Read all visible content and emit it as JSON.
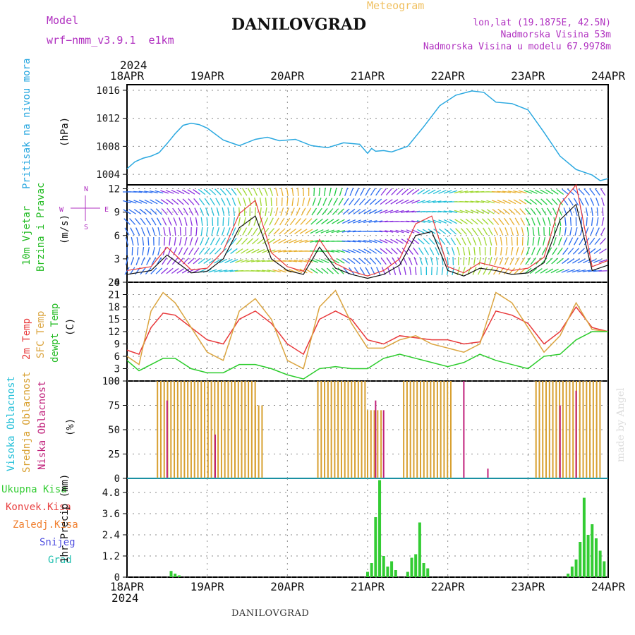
{
  "header": {
    "model_label": "Model",
    "model_name": "wrf−nmm_v3.9.1  e1km",
    "title": "DANILOVGRAD",
    "subtitle": "Meteogram",
    "lonlat": "lon,lat (19.1875E, 42.5N)",
    "altitude": "Nadmorska Visina 53m",
    "model_altitude": "Nadmorska Visina u modelu 67.9978m",
    "top_year": "2024",
    "bottom_year": "2024",
    "footer": "DANILOVGRAD",
    "credit": "made by Angel"
  },
  "colors": {
    "pressure": "#2aa8e0",
    "temp2m": "#e8383a",
    "sfc_temp": "#dba540",
    "dewpoint": "#2ccc2c",
    "cloud_high": "#22bfd8",
    "cloud_mid": "#d8a030",
    "cloud_low": "#c0207a",
    "precip_total": "#33cc33",
    "precip_conv": "#e84040",
    "precip_frz": "#f08030",
    "snow": "#5050e0",
    "hail": "#20c0b0",
    "wind_label": "#22bb22",
    "cloud_label": "#b030c0",
    "axis_label_pressure": "#2aa8e0"
  },
  "chart_data": [
    {
      "type": "line",
      "panel": "pressure",
      "ylabel_main": "Pritisak na nivou mora",
      "unit": "(hPa)",
      "x_dates": [
        "18APR",
        "19APR",
        "20APR",
        "21APR",
        "22APR",
        "23APR",
        "24APR"
      ],
      "ylim": [
        1002.5,
        1016.8
      ],
      "yticks": [
        "1004",
        "1008",
        "1012",
        "1016"
      ],
      "x": [
        0,
        0.1,
        0.2,
        0.3,
        0.4,
        0.5,
        0.6,
        0.7,
        0.8,
        0.9,
        1.0,
        1.2,
        1.4,
        1.6,
        1.75,
        1.9,
        2.1,
        2.3,
        2.5,
        2.7,
        2.9,
        3.0,
        3.05,
        3.1,
        3.2,
        3.3,
        3.5,
        3.7,
        3.9,
        4.1,
        4.3,
        4.45,
        4.6,
        4.8,
        5.0,
        5.2,
        5.4,
        5.6,
        5.8,
        5.9,
        6.0
      ],
      "values": [
        1004.8,
        1005.8,
        1006.3,
        1006.6,
        1007.1,
        1008.4,
        1009.8,
        1011.0,
        1011.3,
        1011.1,
        1010.6,
        1008.9,
        1008.1,
        1009.0,
        1009.3,
        1008.8,
        1009.0,
        1008.1,
        1007.8,
        1008.5,
        1008.3,
        1007.0,
        1007.7,
        1007.3,
        1007.4,
        1007.2,
        1008.0,
        1010.8,
        1013.8,
        1015.3,
        1015.9,
        1015.7,
        1014.3,
        1014.1,
        1013.2,
        1010.0,
        1006.6,
        1004.7,
        1003.9,
        1003.1,
        1003.4
      ]
    },
    {
      "type": "line",
      "panel": "wind",
      "ylabel_main": "10m Vjetar",
      "ylabel_sub": "Brzina i Pravac",
      "unit": "(m/s)",
      "compass": {
        "north": "N",
        "south": "S",
        "east": "E",
        "west": "W"
      },
      "ylim": [
        0,
        12.5
      ],
      "yticks": [
        "0",
        "3",
        "6",
        "9",
        "12"
      ],
      "series": [
        {
          "name": "speed",
          "x": [
            0,
            0.3,
            0.5,
            0.8,
            1.0,
            1.2,
            1.4,
            1.6,
            1.8,
            2.0,
            2.2,
            2.4,
            2.6,
            2.8,
            3.0,
            3.2,
            3.4,
            3.6,
            3.8,
            4.0,
            4.2,
            4.4,
            4.6,
            4.8,
            5.0,
            5.2,
            5.4,
            5.6,
            5.8,
            6.0
          ],
          "values": [
            1.0,
            1.5,
            3.5,
            1.2,
            1.4,
            3.0,
            7.0,
            8.5,
            3.0,
            1.5,
            1.0,
            4.5,
            1.8,
            1.0,
            0.5,
            1.0,
            2.2,
            6.0,
            6.5,
            1.5,
            0.8,
            1.8,
            1.5,
            1.0,
            1.2,
            2.5,
            8.0,
            10.0,
            1.5,
            2.2
          ]
        },
        {
          "name": "gust",
          "x": [
            0,
            0.3,
            0.5,
            0.8,
            1.0,
            1.2,
            1.4,
            1.6,
            1.8,
            2.0,
            2.2,
            2.4,
            2.6,
            2.8,
            3.0,
            3.2,
            3.4,
            3.6,
            3.8,
            4.0,
            4.2,
            4.4,
            4.6,
            4.8,
            5.0,
            5.2,
            5.4,
            5.6,
            5.8,
            6.0
          ],
          "values": [
            1.5,
            2.0,
            4.5,
            1.6,
            1.8,
            4.0,
            8.8,
            10.5,
            3.8,
            2.0,
            1.4,
            5.5,
            2.4,
            1.4,
            0.8,
            1.5,
            3.0,
            7.5,
            8.5,
            2.0,
            1.2,
            2.5,
            2.0,
            1.5,
            1.8,
            3.2,
            10.0,
            12.5,
            2.0,
            2.8
          ]
        }
      ]
    },
    {
      "type": "line",
      "panel": "temperature",
      "ylabel_main": "2m Temp",
      "ylabel_sub1": "SFC Temp",
      "ylabel_sub2": "dewpt Temp",
      "unit": "(C)",
      "ylim": [
        0,
        24
      ],
      "yticks": [
        "0",
        "3",
        "6",
        "9",
        "12",
        "15",
        "18",
        "21",
        "24"
      ],
      "series": [
        {
          "name": "2m Temp",
          "x": [
            0,
            0.15,
            0.3,
            0.45,
            0.6,
            0.8,
            1.0,
            1.2,
            1.4,
            1.6,
            1.8,
            2.0,
            2.2,
            2.4,
            2.6,
            2.8,
            3.0,
            3.2,
            3.4,
            3.6,
            3.8,
            4.0,
            4.2,
            4.4,
            4.6,
            4.8,
            5.0,
            5.2,
            5.4,
            5.6,
            5.8,
            6.0
          ],
          "values": [
            7.5,
            6.5,
            13,
            16.5,
            16,
            13,
            10,
            9,
            15,
            17,
            14,
            9,
            6.5,
            15,
            17,
            15,
            10,
            9,
            11,
            10.5,
            10,
            10,
            9,
            9.5,
            17,
            16,
            14,
            9,
            12,
            18,
            13,
            12
          ]
        },
        {
          "name": "SFC Temp",
          "x": [
            0,
            0.15,
            0.3,
            0.45,
            0.6,
            0.8,
            1.0,
            1.2,
            1.4,
            1.6,
            1.8,
            2.0,
            2.2,
            2.4,
            2.6,
            2.8,
            3.0,
            3.2,
            3.4,
            3.6,
            3.8,
            4.0,
            4.2,
            4.4,
            4.6,
            4.8,
            5.0,
            5.2,
            5.4,
            5.6,
            5.8,
            6.0
          ],
          "values": [
            6,
            4,
            17,
            21.5,
            19,
            13,
            7,
            5,
            17,
            20,
            15,
            5,
            3,
            18,
            22,
            14,
            8,
            8,
            10,
            11,
            9,
            8,
            7,
            9,
            21.5,
            19,
            13,
            7,
            11,
            19,
            12.5,
            12
          ]
        },
        {
          "name": "dewpt Temp",
          "x": [
            0,
            0.15,
            0.3,
            0.45,
            0.6,
            0.8,
            1.0,
            1.2,
            1.4,
            1.6,
            1.8,
            2.0,
            2.2,
            2.4,
            2.6,
            2.8,
            3.0,
            3.2,
            3.4,
            3.6,
            3.8,
            4.0,
            4.2,
            4.4,
            4.6,
            4.8,
            5.0,
            5.2,
            5.4,
            5.6,
            5.8,
            6.0
          ],
          "values": [
            5,
            2.5,
            4,
            5.5,
            5.5,
            3,
            2,
            2,
            4,
            4,
            3,
            1.5,
            0.5,
            3,
            3.5,
            3,
            3,
            5.5,
            6.5,
            5.5,
            4.5,
            3.5,
            4.5,
            6.5,
            5,
            4,
            3,
            6,
            6.5,
            10,
            12,
            12
          ]
        }
      ]
    },
    {
      "type": "bar",
      "panel": "clouds",
      "ylabel_main": "Visoka Oblacnost",
      "ylabel_sub1": "Srednja Oblacnost",
      "ylabel_sub2": "Niska Oblacnost",
      "unit": "(%)",
      "ylim": [
        0,
        100
      ],
      "yticks": [
        "0",
        "25",
        "50",
        "75",
        "100"
      ],
      "mid_blocks": [
        [
          0.38,
          1.6,
          100
        ],
        [
          1.6,
          1.72,
          75
        ],
        [
          2.38,
          3.0,
          100
        ],
        [
          3.0,
          3.2,
          70
        ],
        [
          3.45,
          4.05,
          100
        ],
        [
          5.1,
          5.9,
          100
        ]
      ],
      "low_spikes": [
        [
          0.5,
          80
        ],
        [
          1.1,
          45
        ],
        [
          3.1,
          80
        ],
        [
          3.2,
          70
        ],
        [
          4.2,
          100
        ],
        [
          4.5,
          10
        ],
        [
          5.4,
          75
        ],
        [
          5.6,
          90
        ]
      ]
    },
    {
      "type": "bar",
      "panel": "precip",
      "legend": [
        "Ukupna Kisa",
        "Konvek.Kisa",
        "Zaledj.Kisa",
        "Snijeg",
        "Grad"
      ],
      "ylabel_main": "1hr Precip (mm)",
      "ylim": [
        0,
        5.6
      ],
      "yticks": [
        "0",
        "1.2",
        "2.4",
        "3.6",
        "4.8"
      ],
      "bars": [
        [
          0.55,
          0.35
        ],
        [
          0.6,
          0.2
        ],
        [
          0.65,
          0.1
        ],
        [
          3.0,
          0.3
        ],
        [
          3.05,
          0.8
        ],
        [
          3.1,
          3.4
        ],
        [
          3.15,
          5.5
        ],
        [
          3.2,
          1.2
        ],
        [
          3.25,
          0.6
        ],
        [
          3.3,
          0.9
        ],
        [
          3.35,
          0.4
        ],
        [
          3.5,
          0.3
        ],
        [
          3.55,
          1.1
        ],
        [
          3.6,
          1.3
        ],
        [
          3.65,
          3.1
        ],
        [
          3.7,
          0.8
        ],
        [
          3.75,
          0.5
        ],
        [
          5.5,
          0.2
        ],
        [
          5.55,
          0.6
        ],
        [
          5.6,
          1.0
        ],
        [
          5.65,
          2.0
        ],
        [
          5.7,
          4.5
        ],
        [
          5.75,
          2.4
        ],
        [
          5.8,
          3.0
        ],
        [
          5.85,
          2.2
        ],
        [
          5.9,
          1.5
        ],
        [
          5.95,
          0.9
        ]
      ]
    }
  ]
}
